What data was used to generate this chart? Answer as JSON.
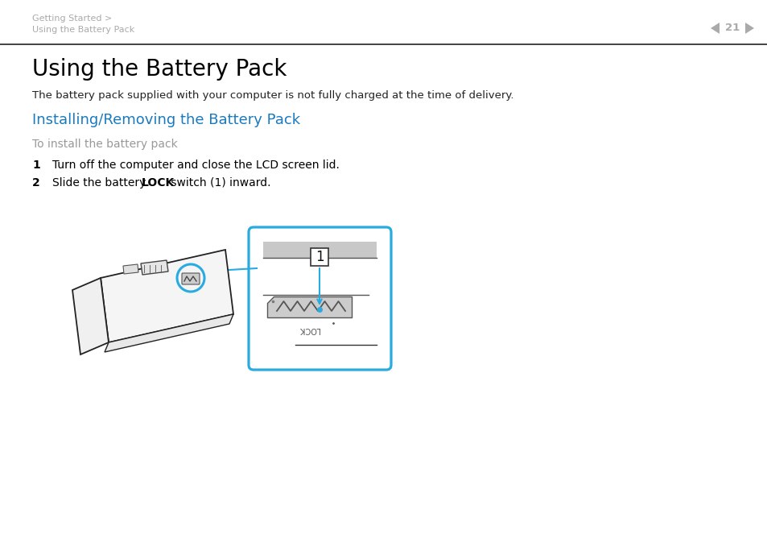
{
  "bg_color": "#ffffff",
  "header_text_line1": "Getting Started >",
  "header_text_line2": "Using the Battery Pack",
  "header_color": "#aaaaaa",
  "page_number": "21",
  "title": "Using the Battery Pack",
  "title_fontsize": 20,
  "title_color": "#000000",
  "subtitle": "The battery pack supplied with your computer is not fully charged at the time of delivery.",
  "subtitle_fontsize": 9.5,
  "subtitle_color": "#222222",
  "section_title": "Installing/Removing the Battery Pack",
  "section_title_fontsize": 13,
  "section_title_color": "#1a7abf",
  "subsection_title": "To install the battery pack",
  "subsection_color": "#999999",
  "subsection_fontsize": 10,
  "step1_num": "1",
  "step1_text": "Turn off the computer and close the LCD screen lid.",
  "step2_num": "2",
  "step2_text_normal1": "Slide the battery ",
  "step2_text_bold": "LOCK",
  "step2_text_normal2": " switch (1) inward.",
  "step_fontsize": 10,
  "step_color": "#000000",
  "cyan_color": "#29abe2",
  "dark_line": "#333333",
  "gray_line": "#aaaaaa"
}
